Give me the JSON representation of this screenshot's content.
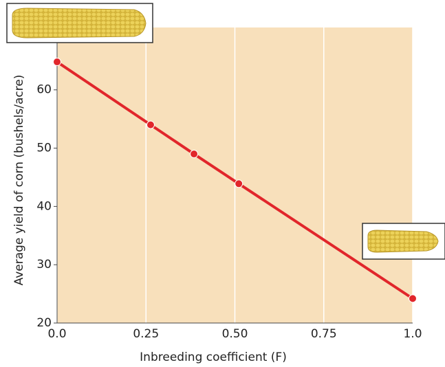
{
  "chart_data": {
    "type": "line",
    "xlabel": "Inbreeding coefficient (F)",
    "ylabel": "Average yield of corn (bushels/acre)",
    "x": [
      0,
      0.263,
      0.385,
      0.511,
      1.0
    ],
    "series": [
      {
        "color": "#e1262b",
        "values": [
          64.8,
          54.0,
          49.0,
          43.9,
          24.2
        ]
      }
    ],
    "xlim": [
      0,
      1
    ],
    "ylim": [
      20,
      70.7
    ],
    "xticks": [
      {
        "value": 0,
        "label": "0.0"
      },
      0.25,
      {
        "value": 0.5,
        "label": "0.50"
      },
      0.75,
      {
        "value": 1,
        "label": "1.0"
      }
    ],
    "yticks": [
      20,
      30,
      40,
      50,
      60
    ],
    "grid": true,
    "background": "#f8e0bb"
  }
}
